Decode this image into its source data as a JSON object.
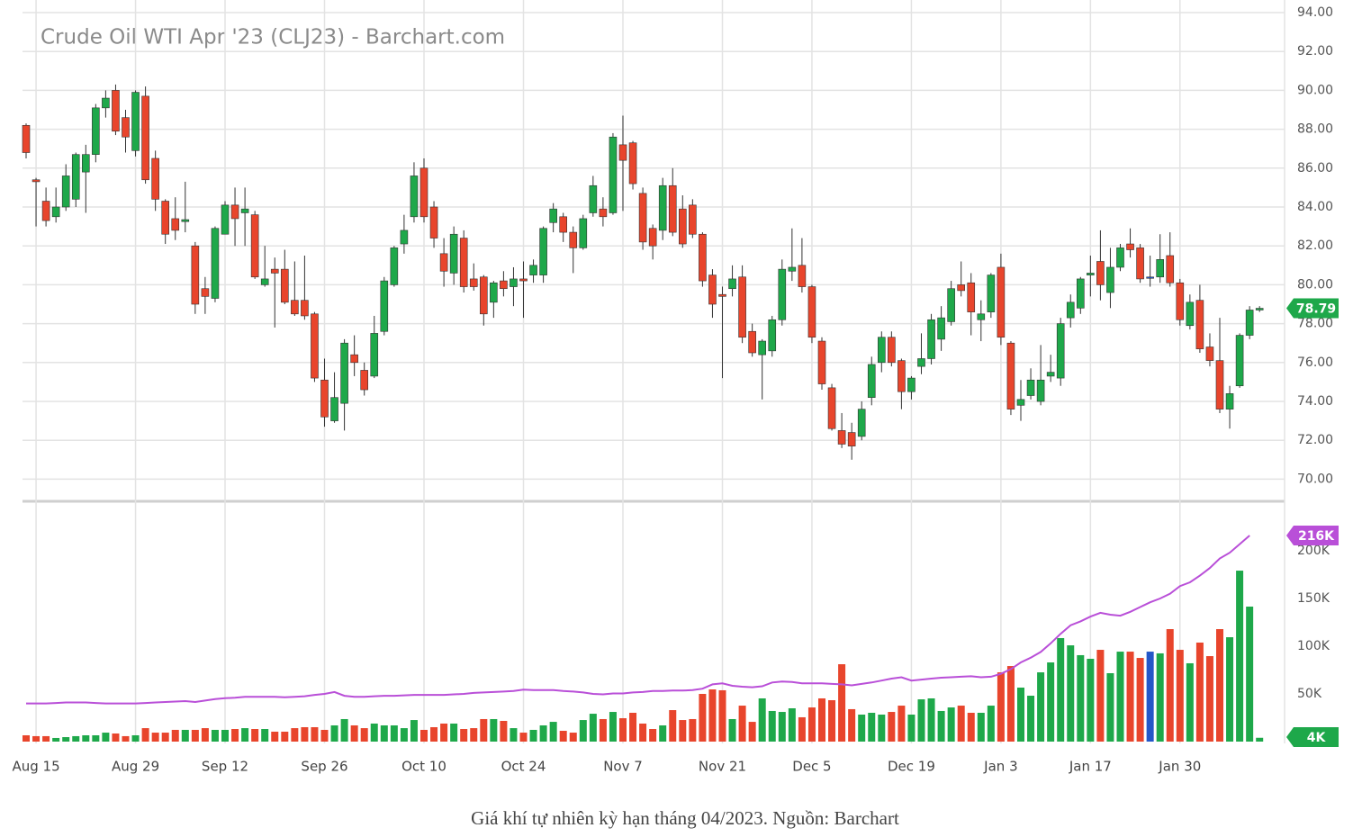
{
  "caption": "Giá khí tự nhiên kỳ hạn tháng 04/2023. Nguồn: Barchart",
  "chart_data": [
    {
      "type": "candlestick",
      "title": "Crude Oil WTI Apr '23 (CLJ23) - Barchart.com",
      "categories": [
        null,
        "Aug 15",
        null,
        null,
        null,
        null,
        null,
        null,
        null,
        null,
        null,
        "Aug 29",
        null,
        null,
        null,
        null,
        null,
        null,
        null,
        null,
        "Sep 12",
        null,
        null,
        null,
        null,
        null,
        null,
        null,
        null,
        null,
        "Sep 26",
        null,
        null,
        null,
        null,
        null,
        null,
        null,
        null,
        null,
        "Oct 10",
        null,
        null,
        null,
        null,
        null,
        null,
        null,
        null,
        null,
        "Oct 24",
        null,
        null,
        null,
        null,
        null,
        null,
        null,
        null,
        null,
        "Nov 7",
        null,
        null,
        null,
        null,
        null,
        null,
        null,
        null,
        null,
        "Nov 21",
        null,
        null,
        null,
        null,
        null,
        null,
        null,
        null,
        "Dec 5",
        null,
        null,
        null,
        null,
        null,
        null,
        null,
        null,
        null,
        "Dec 19",
        null,
        null,
        null,
        null,
        null,
        null,
        null,
        null,
        "Jan 3",
        null,
        null,
        null,
        null,
        null,
        null,
        null,
        null,
        "Jan 17",
        null,
        null,
        null,
        null,
        null,
        null,
        null,
        null,
        "Jan 30",
        null,
        null,
        null,
        null,
        null,
        null,
        null,
        null
      ],
      "open": [
        88.2,
        85.4,
        84.3,
        83.5,
        84.0,
        84.4,
        85.8,
        86.7,
        89.1,
        90.0,
        88.6,
        86.9,
        89.7,
        86.5,
        84.3,
        83.4,
        83.25,
        82.0,
        79.8,
        79.3,
        82.6,
        84.1,
        83.7,
        83.6,
        80.0,
        80.8,
        80.8,
        79.2,
        79.2,
        78.5,
        75.1,
        73.0,
        73.9,
        76.4,
        75.6,
        75.3,
        77.6,
        80.0,
        82.1,
        83.5,
        86.0,
        84.0,
        81.6,
        80.6,
        82.4,
        80.3,
        80.4,
        79.1,
        80.2,
        79.9,
        80.3,
        80.5,
        80.5,
        83.2,
        83.5,
        82.7,
        81.9,
        83.7,
        83.9,
        83.7,
        87.2,
        87.3,
        84.7,
        82.9,
        82.8,
        85.1,
        83.9,
        84.1,
        82.6,
        80.5,
        79.5,
        79.8,
        80.4,
        77.6,
        76.4,
        76.6,
        78.2,
        80.7,
        81.0,
        79.9,
        77.1,
        74.7,
        72.5,
        72.4,
        72.2,
        74.2,
        76.0,
        77.3,
        76.1,
        74.5,
        75.8,
        76.2,
        77.2,
        78.1,
        80.0,
        80.1,
        78.2,
        78.6,
        80.9,
        77.0,
        73.8,
        74.3,
        74.0,
        75.3,
        75.2,
        78.3,
        78.8,
        80.5,
        81.2,
        79.6,
        80.9,
        82.1,
        81.9,
        80.4,
        80.4,
        81.5,
        80.1,
        77.9,
        79.2,
        76.8,
        76.1,
        73.6,
        74.8,
        77.4,
        78.7
      ],
      "high": [
        88.3,
        85.5,
        85.0,
        85.0,
        86.2,
        86.8,
        87.2,
        89.3,
        90.0,
        90.3,
        89.0,
        90.0,
        90.2,
        86.9,
        84.4,
        84.5,
        85.3,
        82.2,
        80.4,
        83.0,
        84.3,
        85.0,
        85.0,
        83.8,
        82.0,
        81.4,
        81.8,
        81.2,
        81.5,
        78.6,
        76.2,
        75.5,
        77.2,
        77.4,
        76.0,
        78.4,
        80.4,
        82.0,
        83.6,
        86.3,
        86.5,
        84.3,
        82.4,
        83.0,
        82.8,
        81.1,
        80.5,
        80.2,
        80.7,
        80.9,
        81.2,
        81.3,
        83.0,
        84.2,
        83.7,
        83.0,
        83.6,
        85.6,
        84.5,
        87.8,
        88.7,
        87.4,
        85.0,
        83.1,
        85.5,
        86.0,
        84.6,
        84.4,
        82.7,
        80.8,
        79.9,
        81.0,
        81.0,
        78.0,
        77.2,
        78.4,
        81.3,
        82.9,
        82.4,
        80.0,
        77.3,
        74.9,
        73.4,
        72.9,
        74.0,
        76.3,
        77.6,
        77.6,
        76.2,
        75.3,
        77.5,
        78.5,
        78.9,
        80.2,
        81.2,
        80.6,
        79.2,
        80.6,
        81.6,
        77.1,
        75.1,
        75.7,
        76.9,
        76.4,
        78.3,
        79.5,
        80.4,
        81.5,
        82.8,
        81.9,
        82.1,
        82.9,
        82.1,
        81.5,
        82.6,
        82.7,
        80.3,
        79.5,
        80.0,
        77.5,
        78.3,
        74.8,
        77.5,
        78.9,
        78.9
      ],
      "low": [
        86.5,
        83.0,
        83.0,
        83.2,
        83.8,
        84.0,
        83.7,
        86.3,
        88.6,
        87.7,
        86.8,
        86.6,
        85.2,
        83.8,
        82.1,
        82.3,
        82.7,
        78.5,
        78.5,
        79.1,
        82.6,
        82.0,
        82.0,
        80.3,
        79.9,
        77.8,
        79.0,
        78.4,
        78.2,
        75.0,
        72.7,
        72.9,
        72.5,
        75.3,
        74.3,
        75.2,
        77.4,
        79.9,
        81.6,
        83.2,
        83.2,
        81.9,
        79.9,
        80.0,
        79.6,
        79.7,
        77.9,
        78.3,
        79.4,
        78.9,
        78.3,
        80.1,
        80.1,
        82.7,
        82.2,
        80.6,
        81.8,
        83.5,
        83.0,
        83.6,
        83.8,
        84.9,
        81.8,
        81.3,
        82.3,
        82.5,
        81.9,
        82.4,
        79.9,
        78.3,
        75.2,
        79.4,
        77.0,
        76.3,
        74.1,
        76.3,
        77.9,
        80.2,
        79.6,
        77.0,
        74.6,
        72.5,
        71.6,
        71.0,
        72.0,
        73.8,
        75.5,
        75.8,
        73.6,
        74.1,
        75.4,
        75.9,
        76.6,
        77.9,
        79.4,
        77.4,
        77.1,
        78.3,
        76.9,
        73.3,
        73.0,
        74.1,
        73.8,
        75.0,
        74.8,
        77.8,
        78.5,
        79.4,
        79.2,
        78.8,
        80.7,
        81.4,
        80.1,
        79.9,
        80.1,
        79.9,
        77.9,
        77.7,
        76.5,
        75.8,
        73.4,
        72.6,
        74.7,
        77.2,
        78.6
      ],
      "close": [
        86.8,
        85.3,
        83.3,
        84.0,
        85.6,
        86.7,
        86.7,
        89.1,
        89.6,
        87.9,
        87.6,
        89.9,
        85.4,
        84.4,
        82.6,
        82.8,
        83.35,
        79.0,
        79.4,
        82.9,
        84.1,
        83.4,
        83.9,
        80.4,
        80.3,
        80.6,
        79.1,
        78.5,
        78.4,
        75.2,
        73.2,
        74.2,
        77.0,
        76.0,
        74.6,
        77.5,
        80.2,
        81.9,
        82.8,
        85.6,
        83.5,
        82.4,
        80.7,
        82.6,
        79.9,
        79.9,
        78.5,
        80.1,
        79.8,
        80.3,
        80.2,
        81.0,
        82.9,
        83.9,
        82.7,
        81.9,
        83.4,
        85.1,
        83.5,
        87.6,
        86.4,
        85.2,
        82.2,
        82.0,
        85.1,
        82.7,
        82.1,
        82.6,
        80.2,
        79.0,
        79.4,
        80.3,
        77.3,
        76.5,
        77.1,
        78.2,
        80.8,
        80.9,
        79.9,
        77.3,
        74.9,
        72.6,
        71.8,
        71.7,
        73.6,
        75.9,
        77.3,
        76.0,
        74.5,
        75.2,
        76.2,
        78.2,
        78.3,
        79.8,
        79.7,
        78.6,
        78.5,
        80.5,
        77.3,
        73.6,
        74.1,
        75.1,
        75.1,
        75.5,
        78.0,
        79.1,
        80.3,
        80.6,
        80.0,
        80.9,
        81.9,
        81.8,
        80.3,
        80.4,
        81.3,
        80.1,
        78.2,
        79.1,
        76.7,
        76.1,
        73.6,
        74.4,
        77.4,
        78.7,
        78.79
      ],
      "up_color": "#1ea84a",
      "down_color": "#e8452c",
      "flat_color": "#2457c8",
      "ylim": [
        69,
        94
      ],
      "yticks": [
        {
          "value": 70,
          "label": "70.00"
        },
        {
          "value": 72,
          "label": "72.00"
        },
        {
          "value": 74,
          "label": "74.00"
        },
        {
          "value": 76,
          "label": "76.00"
        },
        {
          "value": 78,
          "label": "78.00"
        },
        {
          "value": 80,
          "label": "80.00"
        },
        {
          "value": 82,
          "label": "82.00"
        },
        {
          "value": 84,
          "label": "84.00"
        },
        {
          "value": 86,
          "label": "86.00"
        },
        {
          "value": 88,
          "label": "88.00"
        },
        {
          "value": 90,
          "label": "90.00"
        },
        {
          "value": 92,
          "label": "92.00"
        },
        {
          "value": 94,
          "label": "94.00"
        }
      ],
      "grid": true,
      "last_price": 78.79
    },
    {
      "type": "bar",
      "values": [
        6600,
        5700,
        5700,
        3800,
        4700,
        5700,
        6600,
        6600,
        9400,
        8500,
        5700,
        6600,
        14100,
        9400,
        9400,
        12300,
        12300,
        12300,
        14100,
        12300,
        12300,
        13200,
        14100,
        13200,
        13200,
        10400,
        10400,
        14100,
        15100,
        15100,
        12300,
        17000,
        23600,
        17000,
        14100,
        18900,
        17000,
        17000,
        14100,
        22600,
        12300,
        15100,
        18900,
        18900,
        13200,
        14100,
        23600,
        23600,
        21700,
        14100,
        9400,
        12300,
        17000,
        20700,
        11300,
        9400,
        22600,
        29200,
        23600,
        31100,
        24500,
        30200,
        18900,
        13200,
        17000,
        33000,
        22600,
        23600,
        50000,
        54700,
        53800,
        23600,
        37700,
        20700,
        45300,
        32100,
        31100,
        34900,
        25500,
        35800,
        45300,
        43400,
        81100,
        34000,
        28300,
        30200,
        28300,
        31100,
        37700,
        28300,
        44300,
        45300,
        32100,
        35800,
        37700,
        30200,
        30200,
        37700,
        72600,
        79200,
        56600,
        48100,
        72600,
        83000,
        108500,
        100900,
        90600,
        86800,
        96200,
        71700,
        94300,
        94300,
        87700,
        94300,
        92500,
        117900,
        96200,
        82100,
        103800,
        89600,
        117900,
        109400,
        179200,
        141500,
        4000
      ],
      "line_values": [
        40000,
        40000,
        40000,
        40500,
        41000,
        41000,
        41000,
        40500,
        40000,
        40000,
        40000,
        40000,
        40500,
        41000,
        41500,
        42000,
        42500,
        41500,
        43000,
        44500,
        45500,
        46000,
        47000,
        47000,
        47000,
        47000,
        46500,
        47000,
        47500,
        49000,
        50000,
        52000,
        48000,
        47000,
        47000,
        47500,
        48000,
        48000,
        48500,
        49000,
        49000,
        49000,
        49000,
        49500,
        50000,
        51000,
        51500,
        52000,
        52500,
        53000,
        54500,
        54000,
        54000,
        54000,
        53000,
        52500,
        51500,
        50000,
        49500,
        50500,
        50500,
        51500,
        52000,
        53000,
        53000,
        53500,
        53500,
        54000,
        55500,
        60000,
        61000,
        58500,
        57500,
        57000,
        58000,
        62000,
        63000,
        62500,
        61000,
        61000,
        61000,
        60500,
        60000,
        59000,
        60500,
        62000,
        64000,
        66000,
        67500,
        64000,
        65000,
        66000,
        67000,
        67500,
        68000,
        68500,
        67500,
        68000,
        71000,
        76000,
        83000,
        88000,
        94000,
        103000,
        113000,
        122000,
        126000,
        131000,
        135000,
        133000,
        132000,
        136000,
        141000,
        146000,
        150000,
        155000,
        163000,
        167000,
        174000,
        182000,
        192000,
        198000,
        207000,
        216000,
        null
      ],
      "line_color": "#b94fd8",
      "ylim": [
        0,
        250000
      ],
      "yticks": [
        {
          "value": 50000,
          "label": "50K"
        },
        {
          "value": 100000,
          "label": "100K"
        },
        {
          "value": 150000,
          "label": "150K"
        },
        {
          "value": 200000,
          "label": "200K"
        }
      ],
      "value_tag": {
        "value": 4000,
        "label": "4K"
      },
      "line_tag": {
        "value": 216000,
        "label": "216K"
      }
    }
  ]
}
